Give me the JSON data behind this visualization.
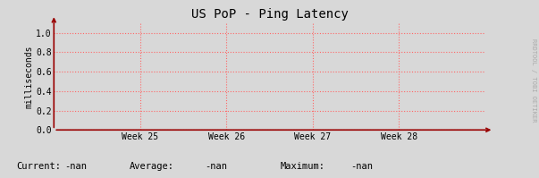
{
  "title": "US PoP - Ping Latency",
  "ylabel": "milliseconds",
  "x_tick_labels": [
    "Week 25",
    "Week 26",
    "Week 27",
    "Week 28"
  ],
  "x_tick_positions": [
    0.2,
    0.4,
    0.6,
    0.8
  ],
  "y_tick_values": [
    0.0,
    0.2,
    0.4,
    0.6,
    0.8,
    1.0
  ],
  "ylim": [
    0.0,
    1.1
  ],
  "xlim": [
    0.0,
    1.0
  ],
  "background_color": "#d8d8d8",
  "plot_bg_color": "#d8d8d8",
  "grid_color": "#ff6666",
  "grid_linestyle": ":",
  "axis_color": "#990000",
  "title_color": "#000000",
  "title_fontsize": 10,
  "tick_fontsize": 7,
  "ylabel_fontsize": 7,
  "tick_label_color": "#000000",
  "ylabel_color": "#000000",
  "current_label": "Current:",
  "current_val": "-nan",
  "average_label": "Average:",
  "average_val": "-nan",
  "maximum_label": "Maximum:",
  "maximum_val": "-nan",
  "footer_color": "#000000",
  "watermark_text": "RRDTOOL / TOBI OETIKER",
  "watermark_color": "#aaaaaa",
  "watermark_fontsize": 5
}
